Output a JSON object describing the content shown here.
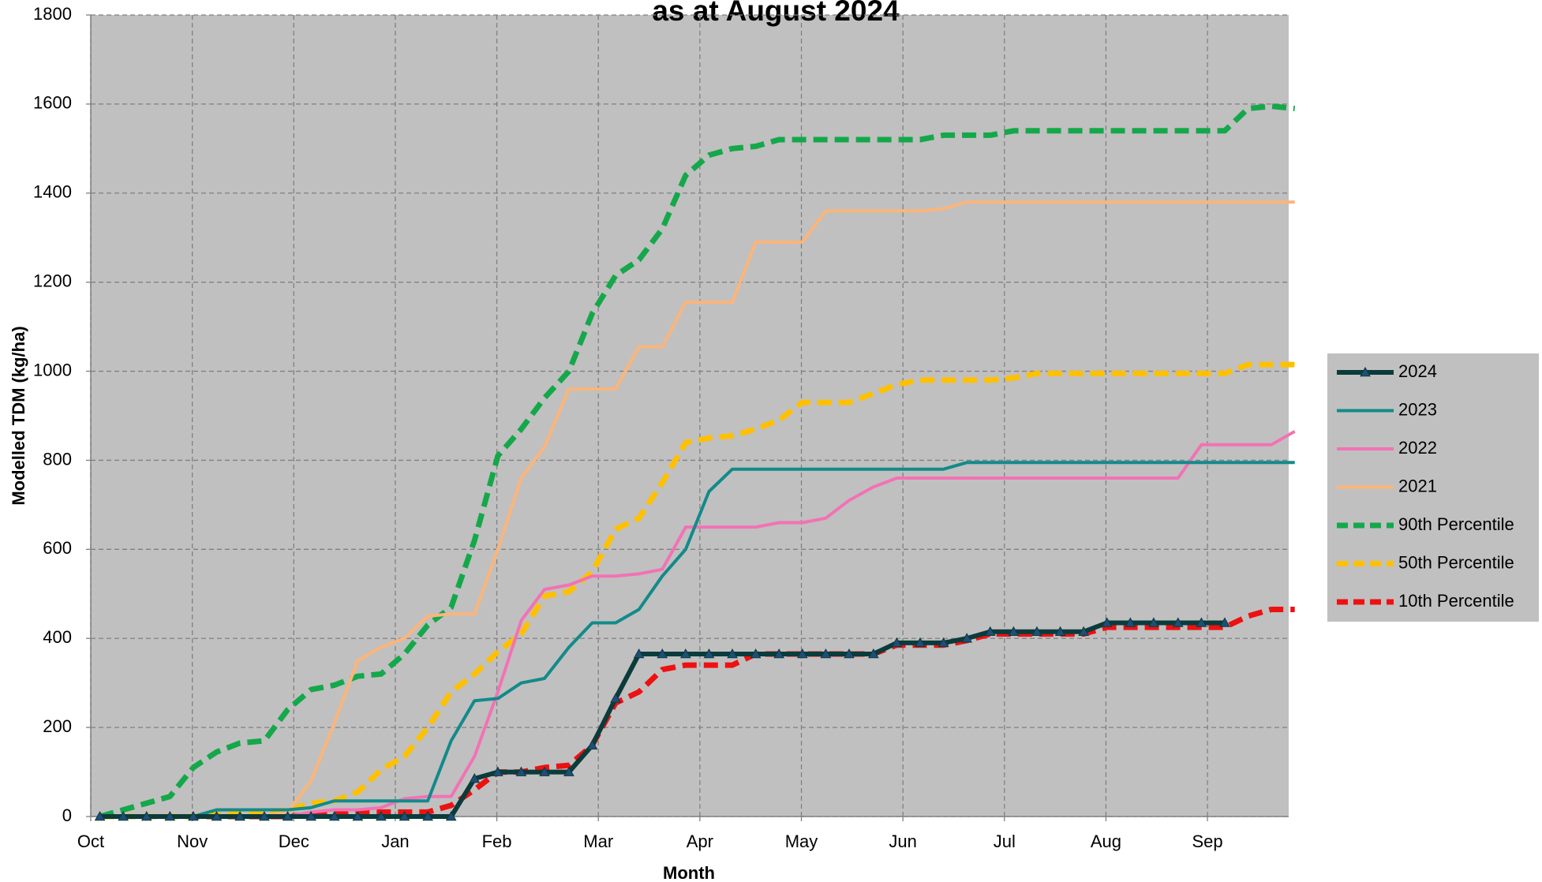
{
  "chart_data": {
    "type": "line",
    "title": "as at August 2024",
    "x_label": "Month",
    "y_label": "Modelled TDM (kg/ha)",
    "xlim": [
      0,
      11.8
    ],
    "xticks": [
      {
        "value": 0,
        "label": "Oct"
      },
      {
        "value": 1,
        "label": "Nov"
      },
      {
        "value": 2,
        "label": "Dec"
      },
      {
        "value": 3,
        "label": "Jan"
      },
      {
        "value": 4,
        "label": "Feb"
      },
      {
        "value": 5,
        "label": "Mar"
      },
      {
        "value": 6,
        "label": "Apr"
      },
      {
        "value": 7,
        "label": "May"
      },
      {
        "value": 8,
        "label": "Jun"
      },
      {
        "value": 9,
        "label": "Jul"
      },
      {
        "value": 10,
        "label": "Aug"
      },
      {
        "value": 11,
        "label": "Sep"
      }
    ],
    "ylim": [
      0,
      1800
    ],
    "yticks": [
      0,
      200,
      400,
      600,
      800,
      1000,
      1200,
      1400,
      1600,
      1800
    ],
    "grid": true,
    "legend": "right",
    "x": [
      0.09,
      0.32,
      0.55,
      0.78,
      1.01,
      1.24,
      1.47,
      1.71,
      1.94,
      2.17,
      2.4,
      2.63,
      2.86,
      3.09,
      3.32,
      3.55,
      3.78,
      4.01,
      4.24,
      4.47,
      4.71,
      4.94,
      5.17,
      5.4,
      5.63,
      5.86,
      6.09,
      6.32,
      6.55,
      6.78,
      7.01,
      7.24,
      7.47,
      7.71,
      7.94,
      8.17,
      8.4,
      8.63,
      8.86,
      9.09,
      9.32,
      9.55,
      9.78,
      10.01,
      10.24,
      10.47,
      10.71,
      10.94,
      11.17,
      11.4,
      11.63,
      11.86
    ],
    "series": [
      {
        "name": "2024",
        "color": "#0b3b3b",
        "style": "solid",
        "marker": "triangle",
        "marker_color": "#1f4e79",
        "values": [
          0,
          0,
          0,
          0,
          0,
          0,
          0,
          0,
          0,
          0,
          0,
          0,
          0,
          0,
          0,
          0,
          85,
          100,
          100,
          100,
          100,
          160,
          265,
          365,
          365,
          365,
          365,
          365,
          365,
          365,
          365,
          365,
          365,
          365,
          390,
          390,
          390,
          400,
          415,
          415,
          415,
          415,
          415,
          435,
          435,
          435,
          435,
          435,
          435,
          null,
          null,
          null
        ]
      },
      {
        "name": "2023",
        "color": "#138a8a",
        "style": "solid",
        "values": [
          0,
          0,
          0,
          0,
          0,
          15,
          15,
          15,
          15,
          20,
          35,
          35,
          35,
          35,
          35,
          170,
          260,
          265,
          300,
          310,
          380,
          435,
          435,
          465,
          540,
          600,
          730,
          780,
          780,
          780,
          780,
          780,
          780,
          780,
          780,
          780,
          780,
          795,
          795,
          795,
          795,
          795,
          795,
          795,
          795,
          795,
          795,
          795,
          795,
          795,
          795,
          795
        ]
      },
      {
        "name": "2022",
        "color": "#f272b4",
        "style": "solid",
        "values": [
          0,
          0,
          0,
          0,
          0,
          0,
          0,
          0,
          0,
          10,
          15,
          15,
          20,
          40,
          45,
          45,
          135,
          280,
          440,
          510,
          520,
          540,
          540,
          545,
          555,
          650,
          650,
          650,
          650,
          660,
          660,
          670,
          710,
          740,
          760,
          760,
          760,
          760,
          760,
          760,
          760,
          760,
          760,
          760,
          760,
          760,
          760,
          835,
          835,
          835,
          835,
          865
        ]
      },
      {
        "name": "2021",
        "color": "#fbb57a",
        "style": "solid",
        "values": [
          0,
          0,
          0,
          0,
          0,
          0,
          0,
          0,
          10,
          80,
          210,
          350,
          380,
          400,
          450,
          455,
          455,
          600,
          760,
          830,
          960,
          960,
          960,
          1055,
          1055,
          1155,
          1155,
          1155,
          1290,
          1290,
          1290,
          1360,
          1360,
          1360,
          1360,
          1360,
          1365,
          1380,
          1380,
          1380,
          1380,
          1380,
          1380,
          1380,
          1380,
          1380,
          1380,
          1380,
          1380,
          1380,
          1380,
          1380
        ]
      },
      {
        "name": "90th Percentile",
        "color": "#14a84a",
        "style": "dashed",
        "values": [
          0,
          15,
          30,
          45,
          110,
          145,
          165,
          170,
          240,
          285,
          295,
          315,
          320,
          365,
          430,
          470,
          620,
          810,
          870,
          940,
          1000,
          1130,
          1215,
          1250,
          1320,
          1440,
          1485,
          1500,
          1505,
          1520,
          1520,
          1520,
          1520,
          1520,
          1520,
          1520,
          1530,
          1530,
          1530,
          1540,
          1540,
          1540,
          1540,
          1540,
          1540,
          1540,
          1540,
          1540,
          1540,
          1590,
          1595,
          1590
        ]
      },
      {
        "name": "50th Percentile",
        "color": "#ffc000",
        "style": "dashed",
        "values": [
          0,
          0,
          0,
          0,
          0,
          5,
          10,
          10,
          15,
          30,
          35,
          55,
          105,
          135,
          200,
          280,
          320,
          370,
          410,
          495,
          505,
          550,
          645,
          670,
          750,
          840,
          850,
          855,
          870,
          890,
          930,
          930,
          930,
          950,
          970,
          980,
          980,
          980,
          980,
          985,
          995,
          995,
          995,
          995,
          995,
          995,
          995,
          995,
          995,
          1015,
          1015,
          1015
        ]
      },
      {
        "name": "10th Percentile",
        "color": "#ee1111",
        "style": "dashed",
        "values": [
          0,
          0,
          0,
          0,
          0,
          0,
          0,
          0,
          0,
          5,
          5,
          10,
          10,
          10,
          10,
          25,
          60,
          100,
          100,
          110,
          115,
          160,
          255,
          280,
          330,
          340,
          340,
          340,
          365,
          365,
          365,
          365,
          365,
          365,
          385,
          385,
          385,
          395,
          410,
          410,
          410,
          410,
          410,
          425,
          425,
          425,
          425,
          425,
          425,
          450,
          465,
          465
        ]
      }
    ]
  }
}
